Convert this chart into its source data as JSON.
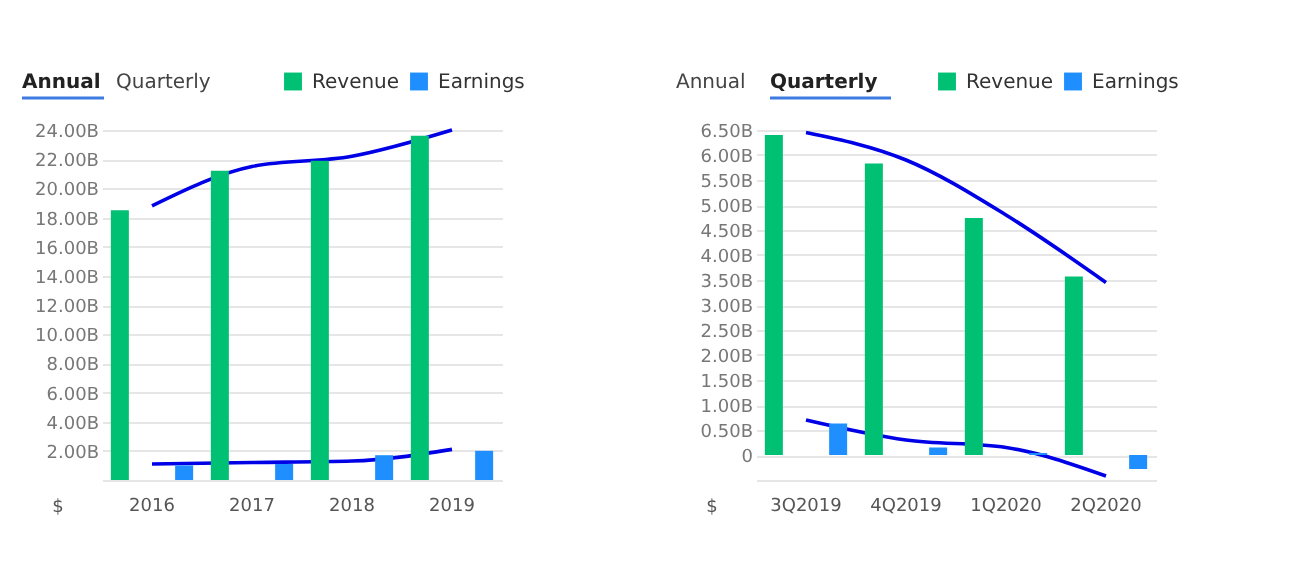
{
  "chart_data": [
    {
      "type": "bar",
      "title": "Annual",
      "annotations": [
        "Quarterly",
        "$"
      ],
      "categories": [
        "2016",
        "2017",
        "2018",
        "2019"
      ],
      "series": [
        {
          "name": "Revenue",
          "color": "#00c073",
          "values": [
            18.5,
            21.2,
            21.9,
            23.6
          ]
        },
        {
          "name": "Earnings",
          "color": "#1f8fff",
          "values": [
            1.0,
            1.1,
            1.7,
            2.0
          ]
        },
        {
          "type": "line",
          "color": "#0000e6",
          "values": [
            18.8,
            21.5,
            22.2,
            24.0
          ]
        },
        {
          "type": "line",
          "color": "#0000e6",
          "values": [
            1.1,
            1.2,
            1.3,
            2.1
          ]
        }
      ],
      "ylim": [
        0,
        24
      ],
      "yticks": [
        {
          "value": 0,
          "label": null
        },
        {
          "value": 2,
          "label": "2.00B"
        },
        {
          "value": 4,
          "label": "4.00B"
        },
        {
          "value": 6,
          "label": "6.00B"
        },
        {
          "value": 8,
          "label": "8.00B"
        },
        {
          "value": 10,
          "label": "10.00B"
        },
        {
          "value": 12,
          "label": "12.00B"
        },
        {
          "value": 14,
          "label": "14.00B"
        },
        {
          "value": 16,
          "label": "16.00B"
        },
        {
          "value": 18,
          "label": "18.00B"
        },
        {
          "value": 20,
          "label": "20.00B"
        },
        {
          "value": 22,
          "label": "22.00B"
        },
        {
          "value": 24,
          "label": "24.00B"
        }
      ],
      "grid": "y",
      "legend": "top right"
    },
    {
      "type": "bar",
      "title": "Quarterly",
      "annotations": [
        "Annual",
        "$"
      ],
      "categories": [
        "3Q2019",
        "4Q2019",
        "1Q2020",
        "2Q2020"
      ],
      "series": [
        {
          "name": "Revenue",
          "color": "#00c073",
          "values": [
            6.4,
            5.83,
            4.74,
            3.57
          ]
        },
        {
          "name": "Earnings",
          "color": "#1f8fff",
          "values": [
            0.63,
            0.15,
            0.04,
            -0.28
          ]
        },
        {
          "type": "line",
          "color": "#0000e6",
          "values": [
            6.45,
            5.9,
            4.8,
            3.45
          ]
        },
        {
          "type": "line",
          "color": "#0000e6",
          "values": [
            0.7,
            0.3,
            0.15,
            -0.42
          ]
        }
      ],
      "ylim": [
        -0.5,
        6.5
      ],
      "yticks": [
        {
          "value": -0.5,
          "label": null
        },
        0,
        {
          "value": 0.5,
          "label": "0.50B"
        },
        {
          "value": 1,
          "label": "1.00B"
        },
        {
          "value": 1.5,
          "label": "1.50B"
        },
        {
          "value": 2,
          "label": "2.00B"
        },
        {
          "value": 2.5,
          "label": "2.50B"
        },
        {
          "value": 3,
          "label": "3.00B"
        },
        {
          "value": 3.5,
          "label": "3.50B"
        },
        {
          "value": 4,
          "label": "4.00B"
        },
        {
          "value": 4.5,
          "label": "4.50B"
        },
        {
          "value": 5,
          "label": "5.00B"
        },
        {
          "value": 5.5,
          "label": "5.50B"
        },
        {
          "value": 6,
          "label": "6.00B"
        },
        {
          "value": 6.5,
          "label": "6.50B"
        }
      ],
      "grid": "y",
      "legend": "top right"
    }
  ]
}
